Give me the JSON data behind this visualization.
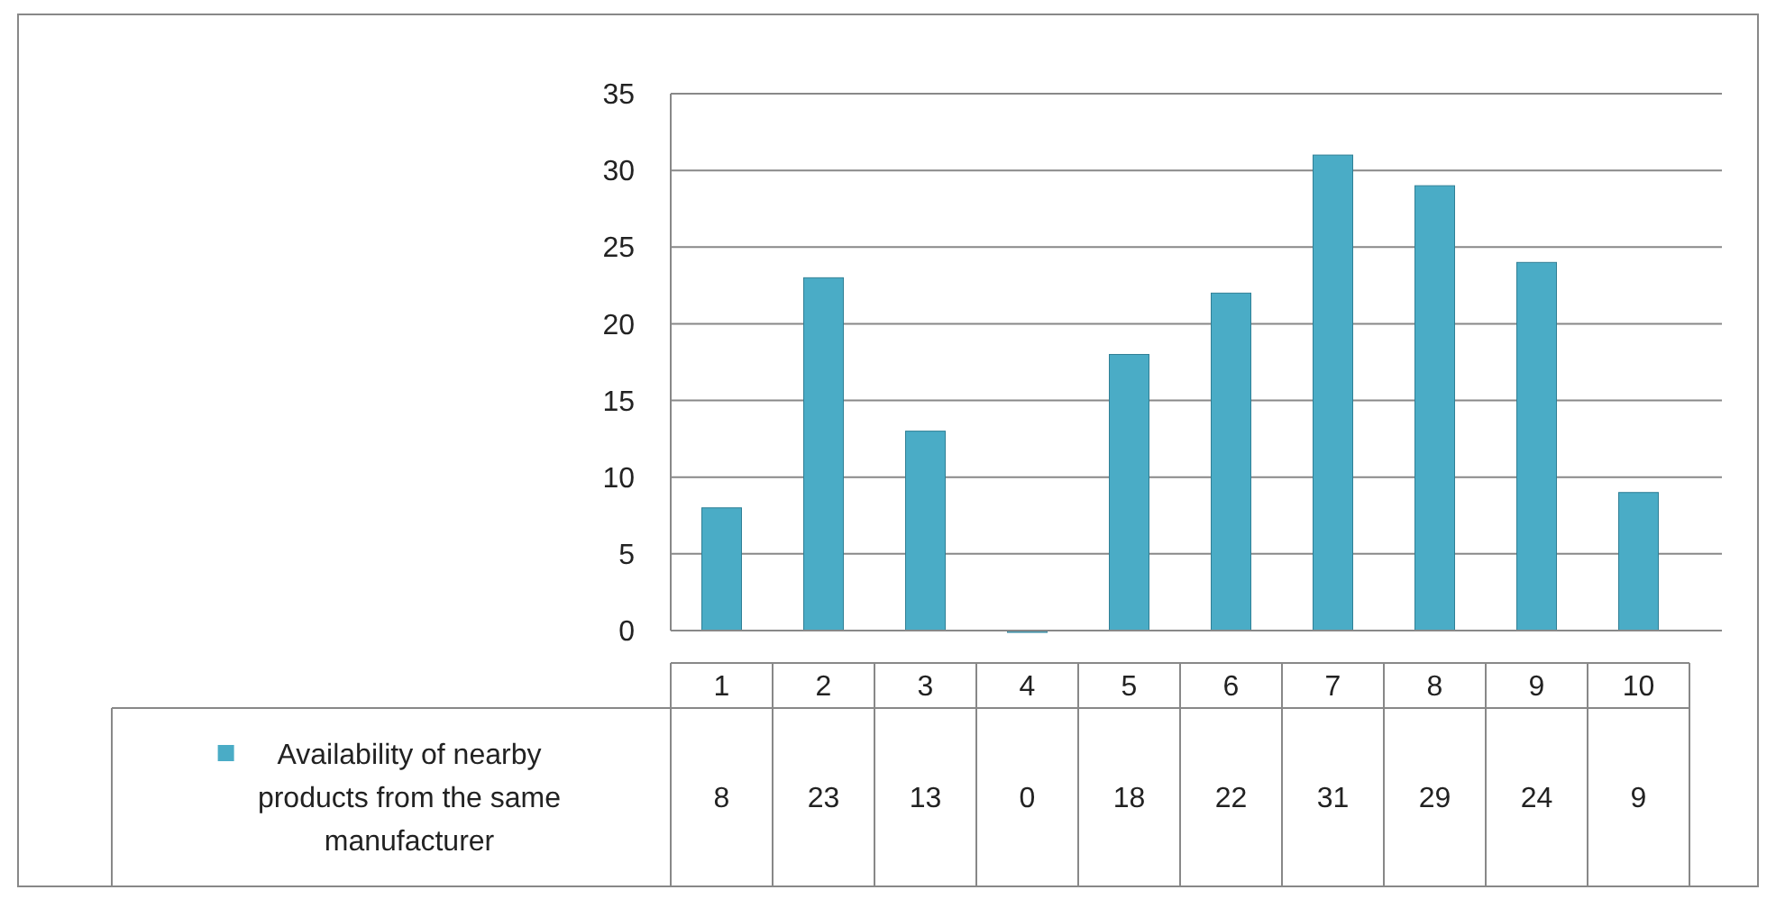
{
  "chart_data": {
    "type": "bar",
    "categories": [
      "1",
      "2",
      "3",
      "4",
      "5",
      "6",
      "7",
      "8",
      "9",
      "10"
    ],
    "series": [
      {
        "name": "Availability of nearby products from the same manufacturer",
        "color": "#4aacc6",
        "values": [
          8,
          23,
          13,
          0,
          18,
          22,
          31,
          29,
          24,
          9
        ]
      }
    ],
    "ylim": [
      0,
      35
    ],
    "yticks": [
      0,
      5,
      10,
      15,
      20,
      25,
      30,
      35
    ],
    "grid": "y",
    "data_labels": true,
    "legend": "bottom"
  }
}
